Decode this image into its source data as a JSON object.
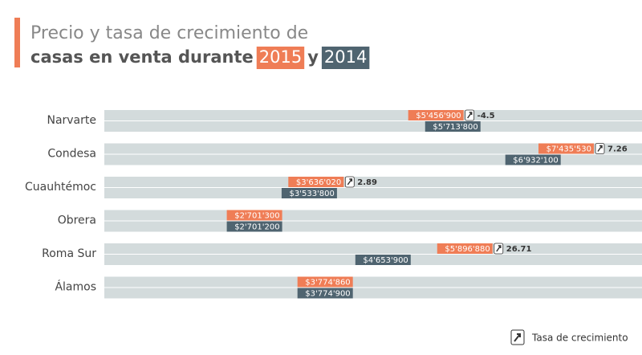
{
  "chart_data": {
    "type": "bar",
    "title": [
      "Precio y tasa de crecimiento de",
      "casas en venta durante",
      "y"
    ],
    "categories": [
      "Narvarte",
      "Condesa",
      "Cuauhtémoc",
      "Obrera",
      "Roma Sur",
      "Álamos"
    ],
    "series": [
      {
        "name": "2015",
        "color": "#ef7d56",
        "values": [
          5456900,
          7435530,
          3636020,
          2701300,
          5896880,
          3774860
        ],
        "value_labels": [
          "$5'456'900",
          "$7'435'530",
          "$3'636'020",
          "$2'701'300",
          "$5'896'880",
          "$3'774'860"
        ]
      },
      {
        "name": "2014",
        "color": "#4f6470",
        "values": [
          5713800,
          6932100,
          3533800,
          2701200,
          4653900,
          3774900
        ],
        "value_labels": [
          "$5'713'800",
          "$6'932'100",
          "$3'533'800",
          "$2'701'200",
          "$4'653'900",
          "$3'774'900"
        ]
      }
    ],
    "growth": {
      "name": "Tasa de crecimiento",
      "values": [
        -4.5,
        7.26,
        2.89,
        null,
        26.71,
        null
      ]
    }
  }
}
